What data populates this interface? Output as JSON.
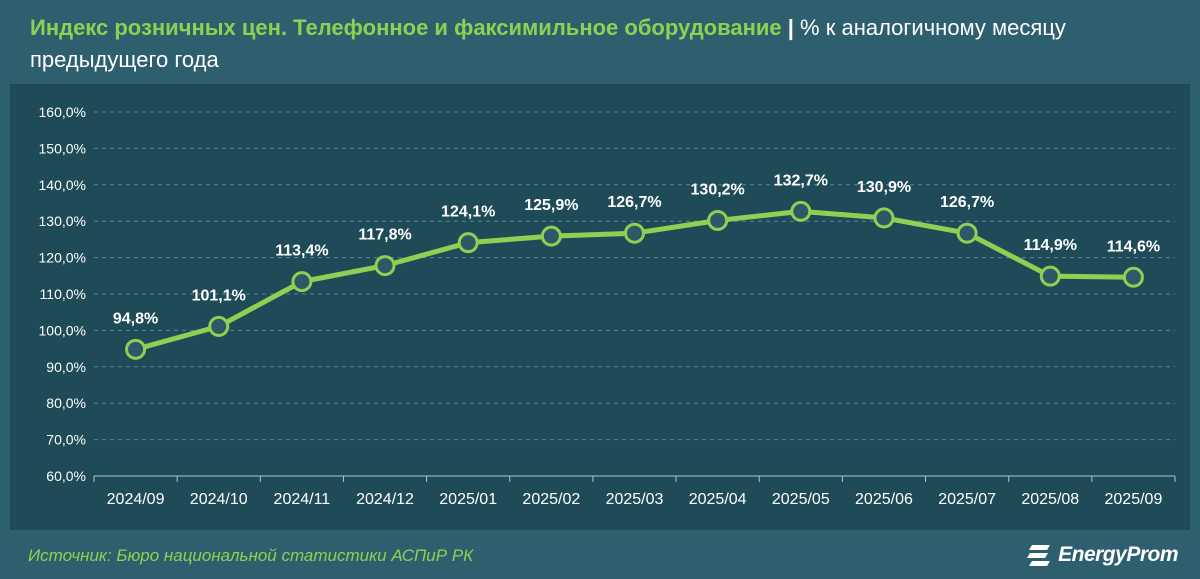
{
  "header": {
    "title_lead": "Индекс розничных цен. Телефонное и факсимильное оборудование",
    "title_separator": "|",
    "title_rest": "% к аналогичному месяцу предыдущего года"
  },
  "footer": {
    "source": "Источник: Бюро национальной статистики АСПиР РК",
    "brand": "EnergyProm"
  },
  "colors": {
    "background": "#2e5f6e",
    "plot_background": "#1f4b58",
    "accent_green": "#8ed152",
    "text": "#ffffff"
  },
  "chart_data": {
    "type": "line",
    "categories": [
      "2024/09",
      "2024/10",
      "2024/11",
      "2024/12",
      "2025/01",
      "2025/02",
      "2025/03",
      "2025/04",
      "2025/05",
      "2025/06",
      "2025/07",
      "2025/08",
      "2025/09"
    ],
    "values": [
      94.8,
      101.1,
      113.4,
      117.8,
      124.1,
      125.9,
      126.7,
      130.2,
      132.7,
      130.9,
      126.7,
      114.9,
      114.6
    ],
    "data_labels": [
      "94,8%",
      "101,1%",
      "113,4%",
      "117,8%",
      "124,1%",
      "125,9%",
      "126,7%",
      "130,2%",
      "132,7%",
      "130,9%",
      "126,7%",
      "114,9%",
      "114,6%"
    ],
    "y_ticks": [
      60,
      70,
      80,
      90,
      100,
      110,
      120,
      130,
      140,
      150,
      160
    ],
    "y_tick_labels": [
      "60,0%",
      "70,0%",
      "80,0%",
      "90,0%",
      "100,0%",
      "110,0%",
      "120,0%",
      "130,0%",
      "140,0%",
      "150,0%",
      "160,0%"
    ],
    "ylim": [
      60,
      160
    ],
    "grid": true,
    "legend": "none",
    "line_color": "#8ed152"
  }
}
